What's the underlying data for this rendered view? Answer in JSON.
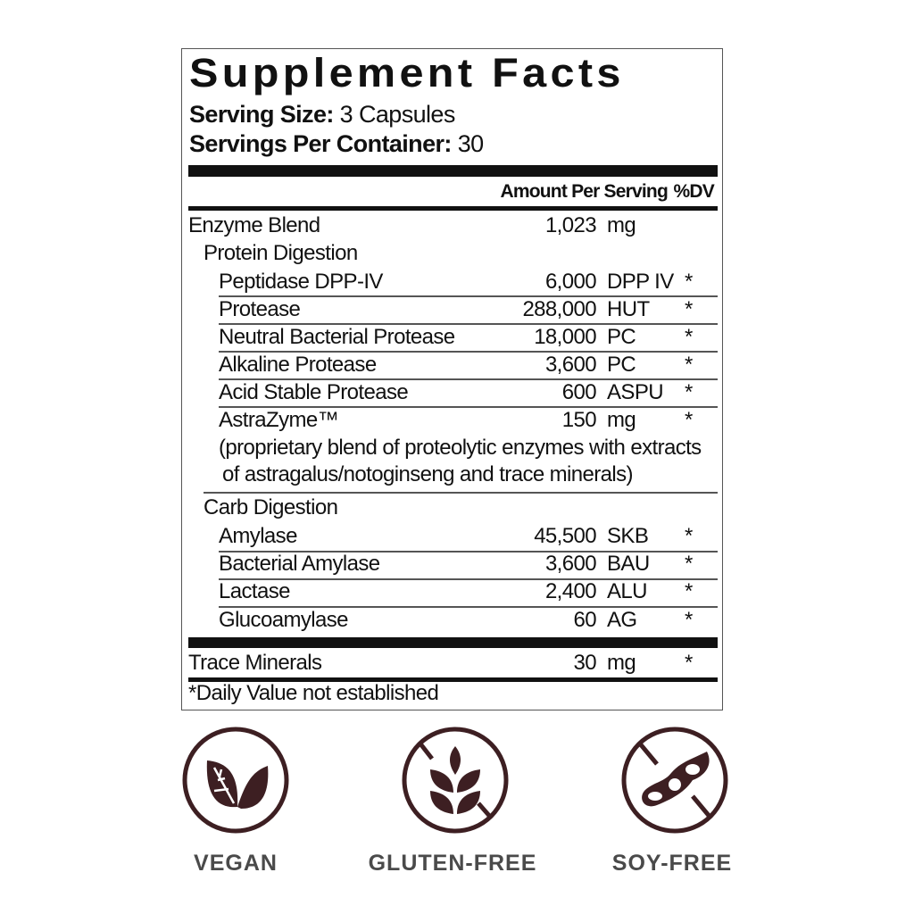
{
  "title": "Supplement Facts",
  "serving_size": {
    "label": "Serving Size:",
    "value": "3 Capsules"
  },
  "servings_per_container": {
    "label": "Servings Per Container:",
    "value": "30"
  },
  "header": {
    "amount": "Amount Per Serving",
    "dv": "%DV"
  },
  "rows": [
    {
      "name": "Enzyme Blend",
      "amount": "1,023",
      "unit": "mg",
      "dv": ""
    },
    {
      "name": "Protein Digestion",
      "amount": "",
      "unit": "",
      "dv": ""
    },
    {
      "name": "Peptidase DPP-IV",
      "amount": "6,000",
      "unit": "DPP IV",
      "dv": "*"
    },
    {
      "name": "Protease",
      "amount": "288,000",
      "unit": "HUT",
      "dv": "*"
    },
    {
      "name": "Neutral Bacterial Protease",
      "amount": "18,000",
      "unit": "PC",
      "dv": "*"
    },
    {
      "name": "Alkaline Protease",
      "amount": "3,600",
      "unit": "PC",
      "dv": "*"
    },
    {
      "name": "Acid Stable Protease",
      "amount": "600",
      "unit": "ASPU",
      "dv": "*"
    },
    {
      "name": "AstraZyme™",
      "amount": "150",
      "unit": "mg",
      "dv": "*"
    },
    {
      "name": "(proprietary blend of proteolytic enzymes with extracts",
      "amount": "",
      "unit": "",
      "dv": ""
    },
    {
      "name": " of astragalus/notoginseng and trace minerals)",
      "amount": "",
      "unit": "",
      "dv": ""
    },
    {
      "name": "Carb Digestion",
      "amount": "",
      "unit": "",
      "dv": ""
    },
    {
      "name": "Amylase",
      "amount": "45,500",
      "unit": "SKB",
      "dv": "*"
    },
    {
      "name": "Bacterial Amylase",
      "amount": "3,600",
      "unit": "BAU",
      "dv": "*"
    },
    {
      "name": "Lactase",
      "amount": "2,400",
      "unit": "ALU",
      "dv": "*"
    },
    {
      "name": "Glucoamylase",
      "amount": "60",
      "unit": "AG",
      "dv": "*"
    },
    {
      "name": "Trace Minerals",
      "amount": "30",
      "unit": "mg",
      "dv": "*"
    }
  ],
  "footnote": "*Daily Value not established",
  "badges": [
    {
      "label": "VEGAN",
      "icon": "leaf-icon"
    },
    {
      "label": "GLUTEN-FREE",
      "icon": "no-wheat-icon"
    },
    {
      "label": "SOY-FREE",
      "icon": "no-soy-icon"
    }
  ],
  "colors": {
    "icon": "#3d1f22",
    "badge_text": "#4a4a4a"
  }
}
